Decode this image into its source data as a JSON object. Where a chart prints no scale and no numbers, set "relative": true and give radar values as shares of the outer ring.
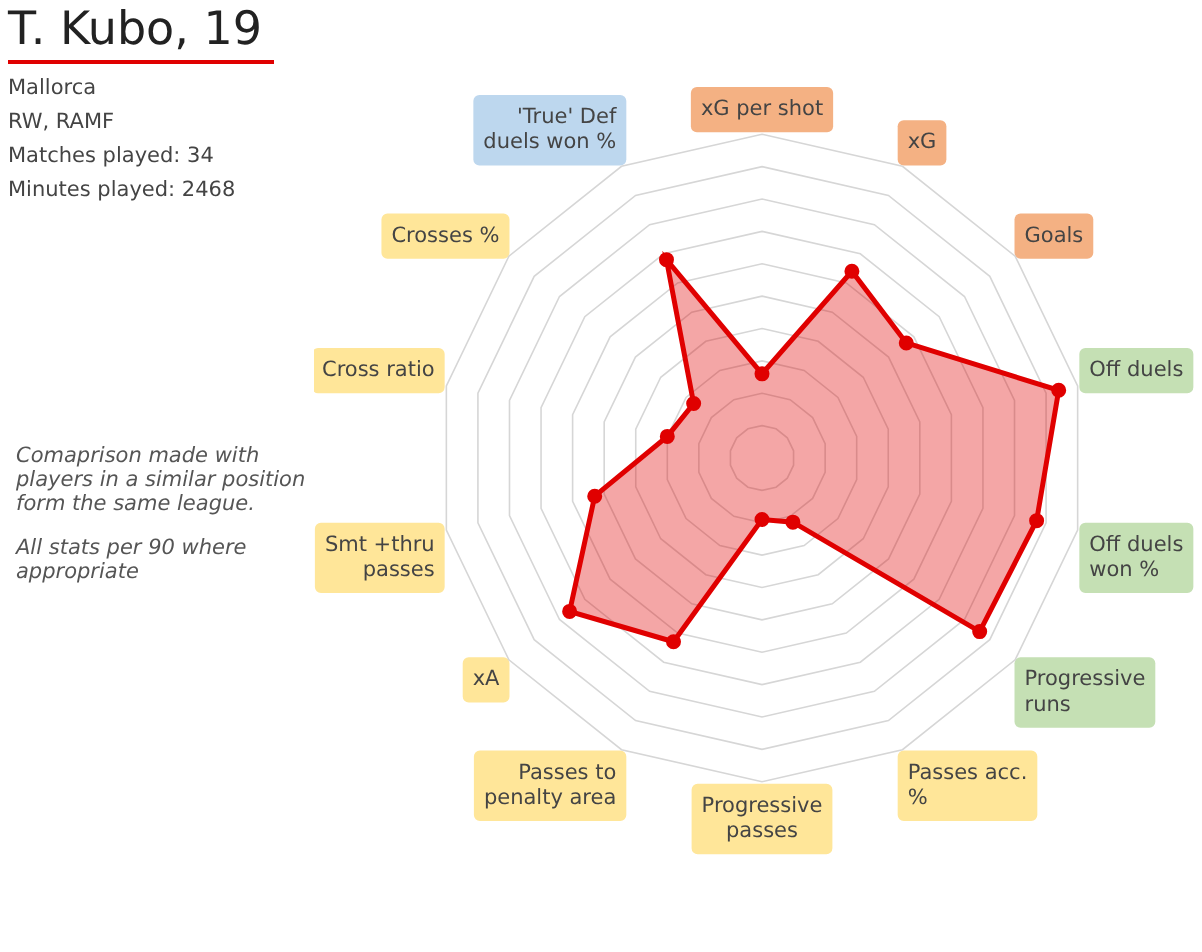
{
  "chart_data": {
    "type": "radar",
    "title": "T. Kubo, 19",
    "subtitle": "Mallorca\nRW, RAMF\nMatches played:  34\nMinutes played: 2468",
    "annotations": [
      "Comaprison made with players in a similar position form the same league.",
      "All stats per 90  where appropriate"
    ],
    "categories": [
      "xG per shot",
      "xG",
      "Goals",
      "Off duels",
      "Off duels won %",
      "Progressive runs",
      "Passes acc. %",
      "Progressive passes",
      "Passes to penalty area",
      "xA",
      "Smt +thru passes",
      "Cross ratio",
      "Crosses %",
      "'True' Def duels won %"
    ],
    "relative": true,
    "grid": true,
    "marker": "circle",
    "legend": false,
    "series": [
      {
        "color": "#e00000",
        "values": [
          0.26,
          0.64,
          0.57,
          0.94,
          0.87,
          0.86,
          0.22,
          0.19,
          0.63,
          0.76,
          0.53,
          0.3,
          0.27,
          0.68
        ]
      }
    ]
  }
}
